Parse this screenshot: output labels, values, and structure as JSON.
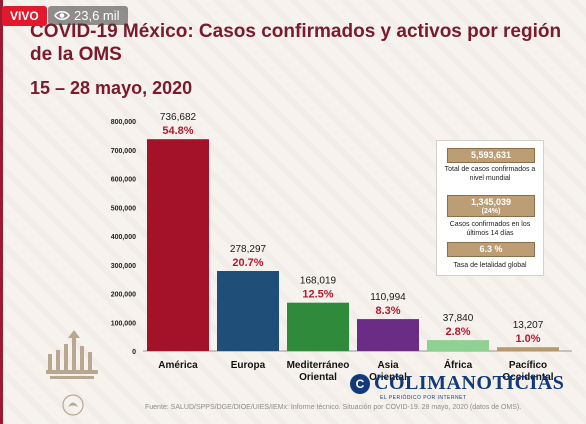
{
  "overlay": {
    "live_label": "VIVO",
    "viewers": "23,6 mil",
    "icon": "eye-icon"
  },
  "header": {
    "title": "COVID-19 México: Casos confirmados y activos por región de la OMS",
    "subtitle": "15 – 28 mayo, 2020"
  },
  "chart_data": {
    "type": "bar",
    "categories": [
      {
        "line1": "América",
        "line2": ""
      },
      {
        "line1": "Europa",
        "line2": ""
      },
      {
        "line1": "Mediterráneo",
        "line2": "Oriental"
      },
      {
        "line1": "Asia",
        "line2": "Oriental"
      },
      {
        "line1": "África",
        "line2": ""
      },
      {
        "line1": "Pacífico",
        "line2": "Occidental"
      }
    ],
    "values": [
      736682,
      278297,
      168019,
      110994,
      37840,
      13207
    ],
    "value_labels": [
      "736,682",
      "278,297",
      "168,019",
      "110,994",
      "37,840",
      "13,207"
    ],
    "percent_labels": [
      "54.8%",
      "20.7%",
      "12.5%",
      "8.3%",
      "2.8%",
      "1.0%"
    ],
    "colors": [
      "#a41229",
      "#1f4e79",
      "#2f8a3b",
      "#6a2c84",
      "#8fd193",
      "#b99a6b"
    ],
    "ylim": [
      0,
      800000
    ],
    "yticks": [
      {
        "value": 0,
        "label": "0"
      },
      {
        "value": 100000,
        "label": "100,000"
      },
      {
        "value": 200000,
        "label": "200,000"
      },
      {
        "value": 300000,
        "label": "300,000"
      },
      {
        "value": 400000,
        "label": "400,000"
      },
      {
        "value": 500000,
        "label": "500,000"
      },
      {
        "value": 600000,
        "label": "600,000"
      },
      {
        "value": 700000,
        "label": "700,000"
      },
      {
        "value": 800000,
        "label": "800,000"
      }
    ],
    "grid": false,
    "percent_color": "#b01b2e"
  },
  "info_panel": {
    "total_value": "5,593,631",
    "total_text": "Total de casos confirmados a nivel mundial",
    "recent_value": "1,345,039",
    "recent_pct": "(24%)",
    "recent_text": "Casos confirmados en los últimos 14 días",
    "lethality_value": "6.3 %",
    "lethality_text": "Tasa de letalidad global"
  },
  "watermark": {
    "name": "COLIMANOTICIAS",
    "initial": "C",
    "tagline": "EL PERIÓDICO POR INTERNET"
  },
  "footer": {
    "source": "Fuente: SALUD/SPPS/DGE/DIOE/UIES/IEMx: Informe técnico. Situación por COVID-19. 28 mayo, 2020 (datos de OMS)."
  }
}
